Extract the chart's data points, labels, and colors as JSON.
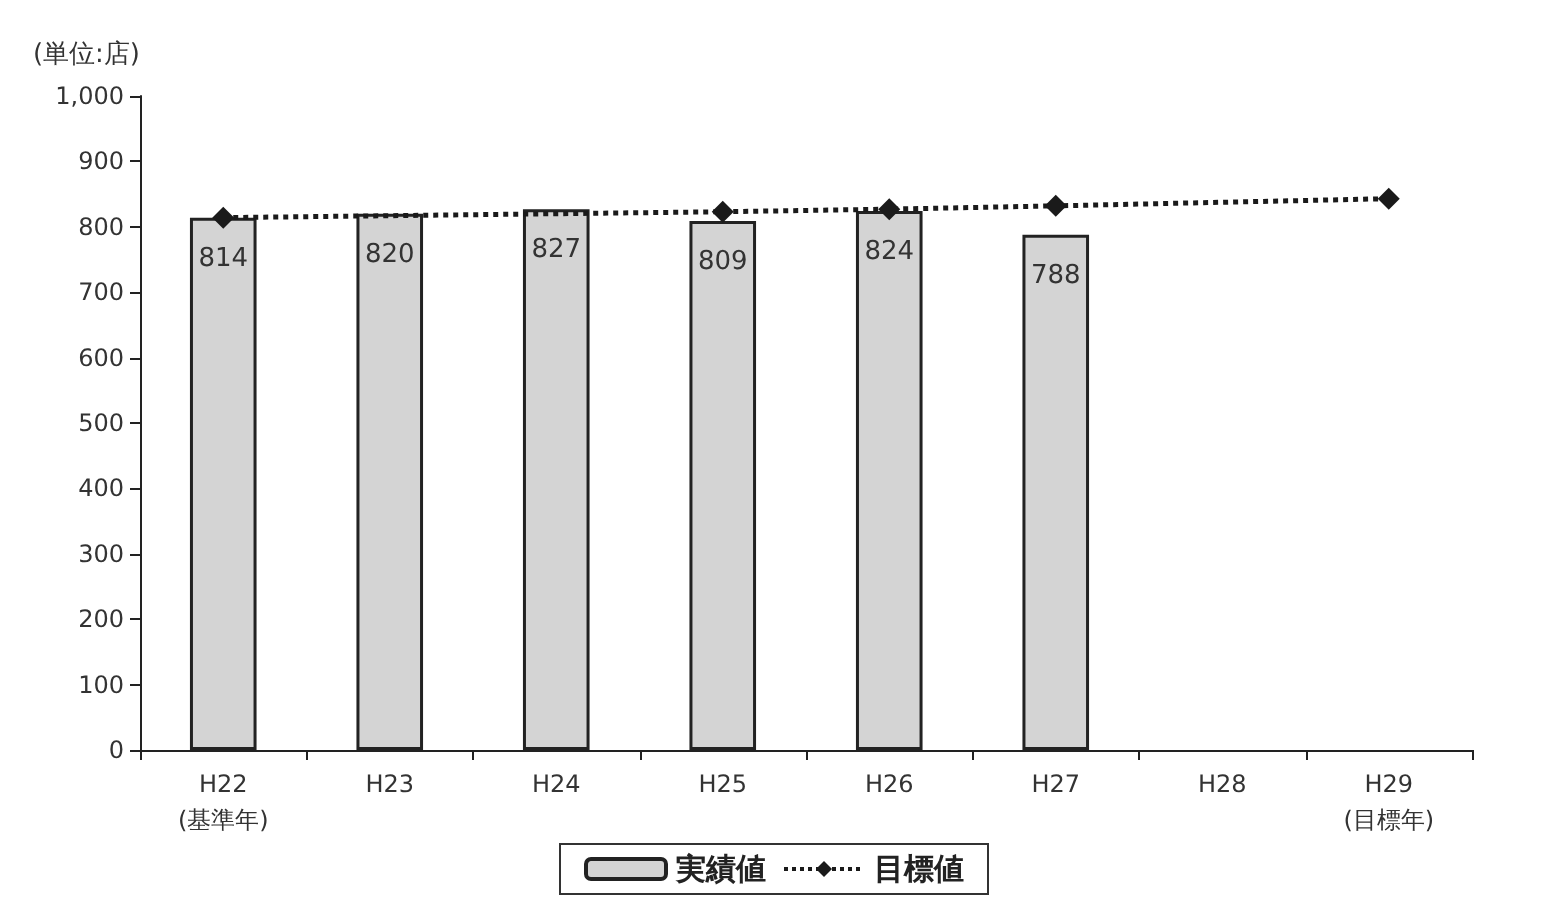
{
  "chart_data": {
    "type": "bar",
    "ylabel": "(単位:店)",
    "categories": [
      "H22\n(基準年)",
      "H23",
      "H24",
      "H25",
      "H26",
      "H27",
      "H28",
      "H29\n(目標年)"
    ],
    "series": [
      {
        "name": "実績値",
        "color": "#d4d4d4",
        "values": [
          814,
          820,
          827,
          809,
          824,
          788,
          null,
          null
        ],
        "data_labels": true
      },
      {
        "name": "目標値",
        "type": "line",
        "color": "#1a1a1a",
        "values": [
          814,
          null,
          null,
          823,
          827,
          832,
          null,
          843
        ],
        "marker": "diamond",
        "line_style": "dotted"
      }
    ],
    "ylim": [
      0,
      1000
    ],
    "yticks": [
      0,
      100,
      200,
      300,
      400,
      500,
      600,
      700,
      800,
      900,
      {
        "value": 1000,
        "label": "1,000"
      }
    ],
    "grid": false,
    "legend": "bottom"
  }
}
